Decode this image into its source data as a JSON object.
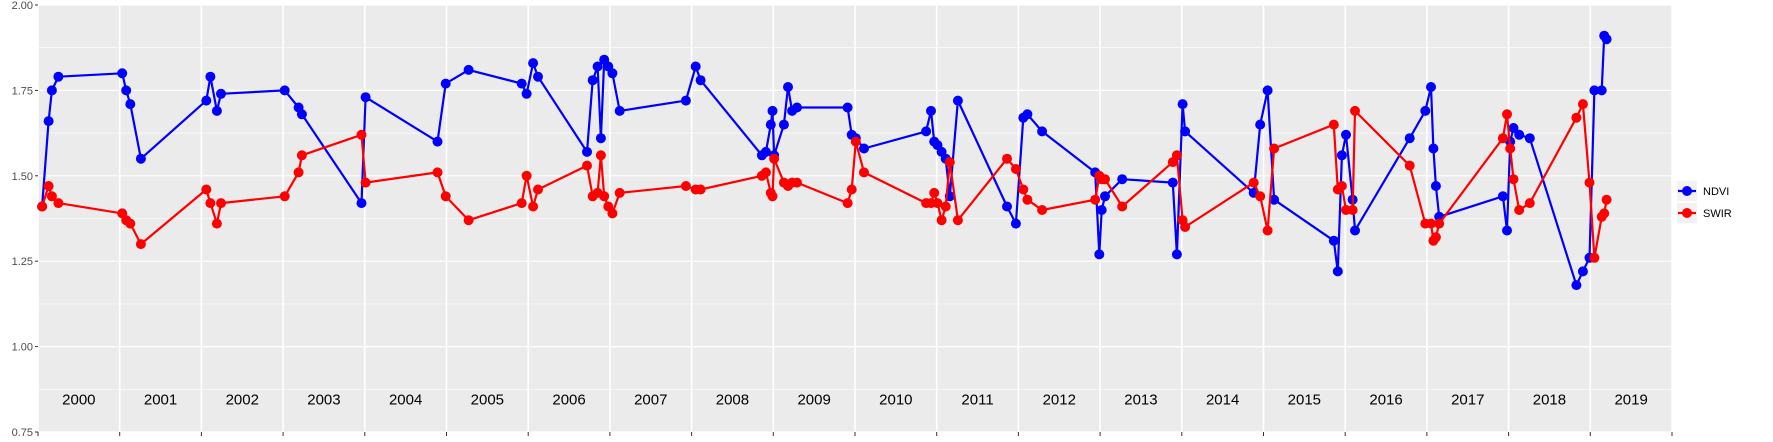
{
  "chart_data": {
    "type": "line",
    "title": "",
    "xlabel": "",
    "ylabel": "",
    "ylim": [
      0.75,
      2.0
    ],
    "y_ticks": [
      "0.75",
      "1.00",
      "1.25",
      "1.50",
      "1.75",
      "2.00"
    ],
    "xlim": [
      2000.0,
      2020.0
    ],
    "x_ticks": [
      2000,
      2001,
      2002,
      2003,
      2004,
      2005,
      2006,
      2007,
      2008,
      2009,
      2010,
      2011,
      2012,
      2013,
      2014,
      2015,
      2016,
      2017,
      2018,
      2019,
      2020
    ],
    "year_labels": [
      "2000",
      "2001",
      "2002",
      "2003",
      "2004",
      "2005",
      "2006",
      "2007",
      "2008",
      "2009",
      "2010",
      "2011",
      "2012",
      "2013",
      "2014",
      "2015",
      "2016",
      "2017",
      "2018",
      "2019"
    ],
    "grid": true,
    "background": "#ebebeb",
    "legend_position": "right",
    "series": [
      {
        "name": "NDVI",
        "color": "#0000ff",
        "x": [
          2000.05,
          2000.13,
          2000.17,
          2000.25,
          2001.03,
          2001.08,
          2001.13,
          2001.26,
          2002.06,
          2002.11,
          2002.19,
          2002.24,
          2003.02,
          2003.19,
          2003.23,
          2003.96,
          2004.01,
          2004.89,
          2004.99,
          2005.27,
          2005.92,
          2005.98,
          2006.06,
          2006.12,
          2006.72,
          2006.79,
          2006.85,
          2006.89,
          2006.93,
          2006.98,
          2007.03,
          2007.12,
          2007.93,
          2008.05,
          2008.11,
          2008.86,
          2008.91,
          2008.97,
          2008.99,
          2009.01,
          2009.13,
          2009.18,
          2009.23,
          2009.29,
          2009.91,
          2009.96,
          2010.01,
          2010.11,
          2010.87,
          2010.93,
          2010.97,
          2011.01,
          2011.06,
          2011.11,
          2011.16,
          2011.26,
          2011.86,
          2011.97,
          2012.06,
          2012.11,
          2012.29,
          2012.94,
          2012.99,
          2013.02,
          2013.06,
          2013.27,
          2013.89,
          2013.94,
          2014.01,
          2014.04,
          2014.88,
          2014.96,
          2015.05,
          2015.13,
          2015.86,
          2015.91,
          2015.96,
          2016.01,
          2016.09,
          2016.12,
          2016.79,
          2016.98,
          2017.05,
          2017.08,
          2017.11,
          2017.15,
          2017.93,
          2017.98,
          2018.02,
          2018.06,
          2018.13,
          2018.26,
          2018.83,
          2018.91,
          2018.99,
          2019.05,
          2019.14,
          2019.17,
          2019.2
        ],
        "values": [
          1.41,
          1.66,
          1.75,
          1.79,
          1.8,
          1.75,
          1.71,
          1.55,
          1.72,
          1.79,
          1.69,
          1.74,
          1.75,
          1.7,
          1.68,
          1.42,
          1.73,
          1.6,
          1.77,
          1.81,
          1.77,
          1.74,
          1.83,
          1.79,
          1.57,
          1.78,
          1.82,
          1.61,
          1.84,
          1.82,
          1.8,
          1.69,
          1.72,
          1.82,
          1.78,
          1.56,
          1.57,
          1.65,
          1.69,
          1.56,
          1.65,
          1.76,
          1.69,
          1.7,
          1.7,
          1.62,
          1.61,
          1.58,
          1.63,
          1.69,
          1.6,
          1.59,
          1.57,
          1.55,
          1.44,
          1.72,
          1.41,
          1.36,
          1.67,
          1.68,
          1.63,
          1.51,
          1.27,
          1.4,
          1.44,
          1.49,
          1.48,
          1.27,
          1.71,
          1.63,
          1.45,
          1.65,
          1.75,
          1.43,
          1.31,
          1.22,
          1.56,
          1.62,
          1.43,
          1.34,
          1.61,
          1.69,
          1.76,
          1.58,
          1.47,
          1.38,
          1.44,
          1.34,
          1.6,
          1.64,
          1.62,
          1.61,
          1.18,
          1.22,
          1.26,
          1.75,
          1.75,
          1.91,
          1.9
        ]
      },
      {
        "name": "SWIR",
        "color": "#ff0000",
        "x": [
          2000.05,
          2000.13,
          2000.17,
          2000.25,
          2001.03,
          2001.08,
          2001.13,
          2001.26,
          2002.06,
          2002.11,
          2002.19,
          2002.24,
          2003.02,
          2003.19,
          2003.23,
          2003.96,
          2004.01,
          2004.89,
          2004.99,
          2005.27,
          2005.92,
          2005.98,
          2006.06,
          2006.12,
          2006.72,
          2006.79,
          2006.85,
          2006.89,
          2006.93,
          2006.98,
          2007.03,
          2007.12,
          2007.93,
          2008.05,
          2008.11,
          2008.86,
          2008.91,
          2008.97,
          2008.99,
          2009.01,
          2009.13,
          2009.18,
          2009.23,
          2009.29,
          2009.91,
          2009.96,
          2010.01,
          2010.11,
          2010.87,
          2010.93,
          2010.97,
          2011.01,
          2011.06,
          2011.11,
          2011.16,
          2011.26,
          2011.86,
          2011.97,
          2012.06,
          2012.11,
          2012.29,
          2012.94,
          2012.99,
          2013.02,
          2013.06,
          2013.27,
          2013.89,
          2013.94,
          2014.01,
          2014.04,
          2014.88,
          2014.96,
          2015.05,
          2015.13,
          2015.86,
          2015.91,
          2015.96,
          2016.01,
          2016.09,
          2016.12,
          2016.79,
          2016.98,
          2017.05,
          2017.08,
          2017.11,
          2017.15,
          2017.93,
          2017.98,
          2018.02,
          2018.06,
          2018.13,
          2018.26,
          2018.83,
          2018.91,
          2018.99,
          2019.05,
          2019.14,
          2019.17,
          2019.2
        ],
        "values": [
          1.41,
          1.47,
          1.44,
          1.42,
          1.39,
          1.37,
          1.36,
          1.3,
          1.46,
          1.42,
          1.36,
          1.42,
          1.44,
          1.51,
          1.56,
          1.62,
          1.48,
          1.51,
          1.44,
          1.37,
          1.42,
          1.5,
          1.41,
          1.46,
          1.53,
          1.44,
          1.45,
          1.56,
          1.44,
          1.41,
          1.39,
          1.45,
          1.47,
          1.46,
          1.46,
          1.5,
          1.51,
          1.45,
          1.44,
          1.55,
          1.48,
          1.47,
          1.48,
          1.48,
          1.42,
          1.46,
          1.6,
          1.51,
          1.42,
          1.42,
          1.45,
          1.42,
          1.37,
          1.41,
          1.54,
          1.37,
          1.55,
          1.52,
          1.46,
          1.43,
          1.4,
          1.43,
          1.5,
          1.49,
          1.49,
          1.41,
          1.54,
          1.56,
          1.37,
          1.35,
          1.48,
          1.44,
          1.34,
          1.58,
          1.65,
          1.46,
          1.47,
          1.4,
          1.4,
          1.69,
          1.53,
          1.36,
          1.36,
          1.31,
          1.32,
          1.36,
          1.61,
          1.68,
          1.58,
          1.49,
          1.4,
          1.42,
          1.67,
          1.71,
          1.48,
          1.26,
          1.38,
          1.39,
          1.43
        ]
      }
    ]
  }
}
